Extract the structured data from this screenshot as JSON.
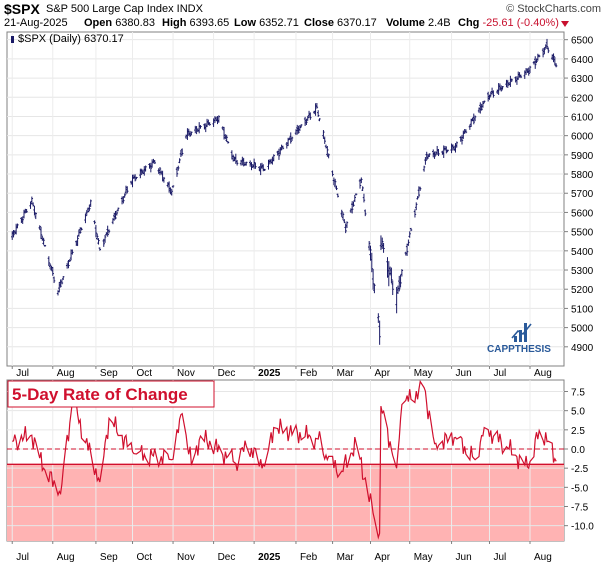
{
  "header": {
    "symbol": "$SPX",
    "name": "S&P 500 Large Cap Index INDX",
    "source": "© StockCharts.com",
    "date": "21-Aug-2025",
    "open_label": "Open",
    "open": "6380.83",
    "high_label": "High",
    "high": "6393.65",
    "low_label": "Low",
    "low": "6352.71",
    "close_label": "Close",
    "close": "6370.17",
    "volume_label": "Volume",
    "volume": "2.4B",
    "chg_label": "Chg",
    "chg": "-25.61 (-0.40%)",
    "chg_color": "#c8102e"
  },
  "legend": "$SPX (Daily) 6370.17",
  "watermark": "CAPPTHESIS",
  "indicator_title": "5-Day Rate of Change",
  "colors": {
    "price_bars": "#1a1a66",
    "roc_line": "#d0102e",
    "roc_fill": "#ffb3b3",
    "accent_blue": "#2a5a9a"
  },
  "chart_data": [
    {
      "type": "ohlc",
      "title": "$SPX (Daily) 6370.17",
      "x_tick_labels": [
        "Jul",
        "Aug",
        "Sep",
        "Oct",
        "Nov",
        "Dec",
        "2025",
        "Feb",
        "Mar",
        "Apr",
        "May",
        "Jun",
        "Jul",
        "Aug"
      ],
      "y_tick_labels": [
        "4900",
        "5000",
        "5100",
        "5200",
        "5300",
        "5400",
        "5500",
        "5600",
        "5700",
        "5800",
        "5900",
        "6000",
        "6100",
        "6200",
        "6300",
        "6400",
        "6500"
      ],
      "ylim": [
        4800,
        6540
      ],
      "x": [
        "2024-07-01",
        "2024-07-16",
        "2024-08-05",
        "2024-08-30",
        "2024-09-06",
        "2024-09-30",
        "2024-10-18",
        "2024-10-31",
        "2024-11-11",
        "2024-12-06",
        "2024-12-18",
        "2025-01-10",
        "2025-02-19",
        "2025-03-13",
        "2025-03-25",
        "2025-04-08",
        "2025-04-09",
        "2025-04-21",
        "2025-05-14",
        "2025-06-05",
        "2025-06-30",
        "2025-07-31",
        "2025-08-14",
        "2025-08-21"
      ],
      "close": [
        5475,
        5660,
        5186,
        5648,
        5408,
        5762,
        5864,
        5705,
        6001,
        6090,
        5872,
        5827,
        6144,
        5521,
        5776,
        4982,
        5456,
        5158,
        5893,
        5939,
        6205,
        6339,
        6468,
        6370
      ]
    },
    {
      "type": "line",
      "title": "5-Day Rate of Change",
      "x_tick_labels": [
        "Jul",
        "Aug",
        "Sep",
        "Oct",
        "Nov",
        "Dec",
        "2025",
        "Feb",
        "Mar",
        "Apr",
        "May",
        "Jun",
        "Jul",
        "Aug"
      ],
      "y_tick_labels": [
        "7.5",
        "5.0",
        "2.5",
        "0.0",
        "-2.5",
        "-5.0",
        "-7.5",
        "-10.0"
      ],
      "ylim": [
        -12,
        9
      ],
      "reference_lines": [
        0,
        -2
      ],
      "x": [
        "2024-07-01",
        "2024-07-16",
        "2024-07-25",
        "2024-08-07",
        "2024-08-16",
        "2024-09-06",
        "2024-09-13",
        "2024-10-02",
        "2024-10-31",
        "2024-11-08",
        "2024-11-15",
        "2024-11-22",
        "2024-12-19",
        "2024-12-27",
        "2025-01-10",
        "2025-01-17",
        "2025-02-20",
        "2025-02-27",
        "2025-03-10",
        "2025-03-21",
        "2025-04-04",
        "2025-04-08",
        "2025-04-09",
        "2025-04-21",
        "2025-04-25",
        "2025-05-12",
        "2025-05-20",
        "2025-06-05",
        "2025-06-20",
        "2025-06-27",
        "2025-07-14",
        "2025-07-31",
        "2025-08-08",
        "2025-08-15",
        "2025-08-21"
      ],
      "values": [
        1.0,
        1.8,
        -2.5,
        -5.8,
        6.2,
        -4.3,
        4.0,
        -0.6,
        -1.4,
        4.6,
        -2.1,
        1.7,
        -1.9,
        0.4,
        -2.2,
        2.8,
        1.3,
        -1.4,
        -2.9,
        0.8,
        -9.1,
        -11.0,
        5.6,
        -2.5,
        5.8,
        8.0,
        0.7,
        1.5,
        -1.4,
        2.8,
        0.3,
        -2.5,
        2.4,
        1.0,
        -1.6
      ]
    }
  ]
}
